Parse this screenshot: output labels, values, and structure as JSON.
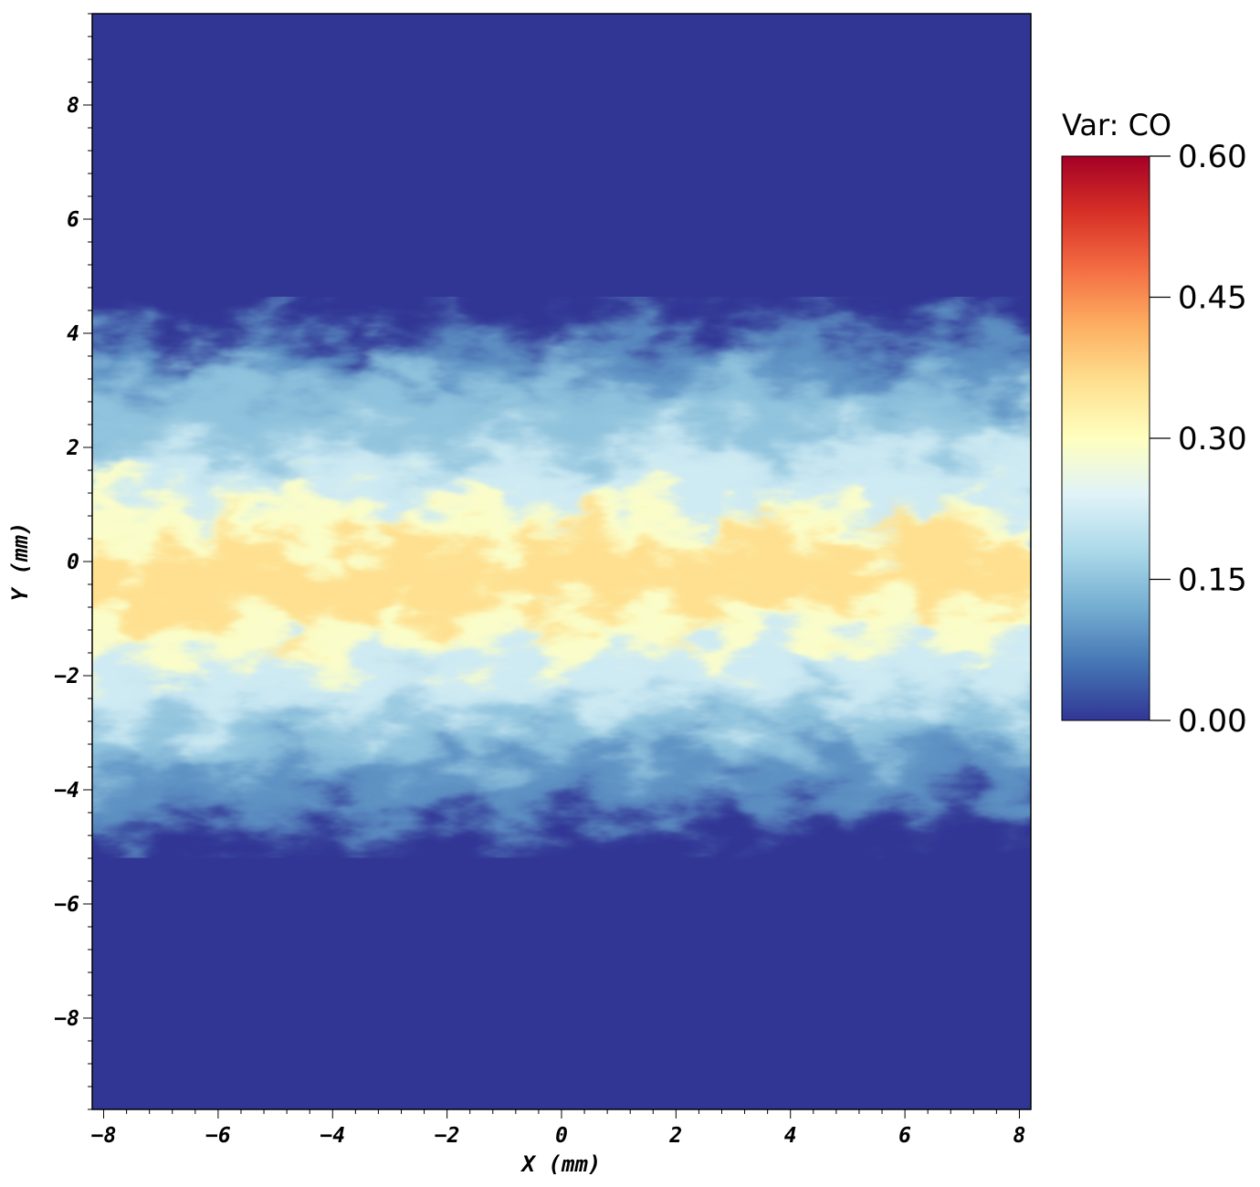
{
  "chart_data": {
    "type": "heatmap",
    "xlabel": "X (mm)",
    "ylabel": "Y (mm)",
    "xlim": [
      -8.2,
      8.2
    ],
    "ylim": [
      -9.6,
      9.6
    ],
    "x_ticks": [
      -8,
      -6,
      -4,
      -2,
      0,
      2,
      4,
      6,
      8
    ],
    "y_ticks": [
      8,
      6,
      4,
      2,
      0,
      -2,
      -4,
      -6,
      -8
    ],
    "colorbar": {
      "title": "Var: CO",
      "min": 0.0,
      "max": 0.6,
      "ticks": [
        "0.60",
        "0.45",
        "0.30",
        "0.15",
        "0.00"
      ],
      "tick_values": [
        0.6,
        0.45,
        0.3,
        0.15,
        0.0
      ],
      "colormap": [
        "#313695",
        "#4575b4",
        "#74add1",
        "#abd9e9",
        "#e0f3f8",
        "#ffffbf",
        "#fee090",
        "#fdae61",
        "#f46d43",
        "#d73027",
        "#a50026"
      ]
    },
    "field_summary": {
      "background_value": 0.0,
      "mixing_layer_y_range": [
        -4.5,
        4.0
      ],
      "core_peak_value": 0.36
    }
  },
  "colors": {
    "background": "#313695",
    "frame": "#000000"
  }
}
